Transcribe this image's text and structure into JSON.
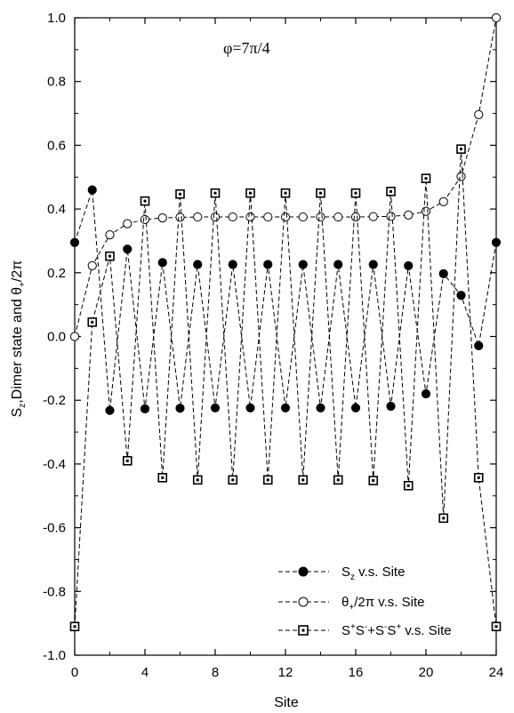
{
  "chart_data": {
    "type": "line",
    "annotation": "φ=7π/4",
    "xlabel": "Site",
    "ylabel": {
      "main": "S",
      "sub": "z",
      "mid": ",Dimer state and   θ",
      "sub2": "+",
      "end": "/2π"
    },
    "xlim": [
      0,
      24
    ],
    "ylim": [
      -1.0,
      1.0
    ],
    "xticks": [
      "0",
      "4",
      "8",
      "12",
      "16",
      "20",
      "24"
    ],
    "yticks": [
      "-1.0",
      "-0.8",
      "-0.6",
      "-0.4",
      "-0.2",
      "0.0",
      "0.2",
      "0.4",
      "0.6",
      "0.8",
      "1.0"
    ],
    "legend_position": "bottom-right",
    "series": [
      {
        "id": "sz",
        "marker": "filled-circle",
        "legend": {
          "a": "S",
          "sub": "z",
          "b": " v.s. Site"
        },
        "x": [
          0,
          1,
          2,
          3,
          4,
          5,
          6,
          7,
          8,
          9,
          10,
          11,
          12,
          13,
          14,
          15,
          16,
          17,
          18,
          19,
          20,
          21,
          22,
          23,
          24
        ],
        "y": [
          0.295,
          0.46,
          -0.232,
          0.274,
          -0.227,
          0.232,
          -0.225,
          0.226,
          -0.224,
          0.226,
          -0.224,
          0.226,
          -0.224,
          0.226,
          -0.224,
          0.226,
          -0.224,
          0.226,
          -0.219,
          0.222,
          -0.18,
          0.197,
          0.129,
          -0.029,
          0.295
        ]
      },
      {
        "id": "theta",
        "marker": "open-circle",
        "legend": {
          "a": "θ",
          "sub": "+",
          "b": "/2π  v.s. Site"
        },
        "x": [
          0,
          1,
          2,
          3,
          4,
          5,
          6,
          7,
          8,
          9,
          10,
          11,
          12,
          13,
          14,
          15,
          16,
          17,
          18,
          19,
          20,
          21,
          22,
          23,
          24
        ],
        "y": [
          0.0,
          0.222,
          0.319,
          0.354,
          0.367,
          0.372,
          0.374,
          0.375,
          0.375,
          0.375,
          0.375,
          0.375,
          0.375,
          0.375,
          0.375,
          0.375,
          0.375,
          0.376,
          0.377,
          0.381,
          0.393,
          0.423,
          0.502,
          0.696,
          1.0
        ]
      },
      {
        "id": "dimer",
        "marker": "dotted-square",
        "legend": {
          "a": "S",
          "sup1": "+",
          "b": "S",
          "sup2": "-",
          "c": "+S",
          "sup3": "-",
          "d": "S",
          "sup4": "+",
          "e": " v.s. Site"
        },
        "x": [
          0,
          1,
          2,
          3,
          4,
          5,
          6,
          7,
          8,
          9,
          10,
          11,
          12,
          13,
          14,
          15,
          16,
          17,
          18,
          19,
          20,
          21,
          22,
          23,
          24
        ],
        "y": [
          -0.91,
          0.045,
          0.252,
          -0.39,
          0.425,
          -0.443,
          0.447,
          -0.45,
          0.45,
          -0.45,
          0.45,
          -0.45,
          0.45,
          -0.45,
          0.45,
          -0.45,
          0.45,
          -0.452,
          0.455,
          -0.468,
          0.496,
          -0.57,
          0.588,
          -0.443,
          -0.91
        ]
      }
    ]
  }
}
